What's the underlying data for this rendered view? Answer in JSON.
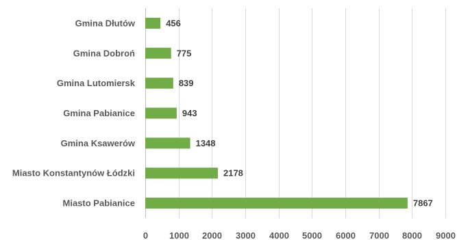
{
  "chart_data": {
    "type": "bar",
    "orientation": "horizontal",
    "categories": [
      "Gmina Dłutów",
      "Gmina Dobroń",
      "Gmina Lutomiersk",
      "Gmina Pabianice",
      "Gmina Ksawerów",
      "Miasto Konstantynów Łódzki",
      "Miasto Pabianice"
    ],
    "values": [
      456,
      775,
      839,
      943,
      1348,
      2178,
      7867
    ],
    "data_labels": [
      "456",
      "775",
      "839",
      "943",
      "1348",
      "2178",
      "7867"
    ],
    "xlim": [
      0,
      9000
    ],
    "x_ticks": [
      0,
      1000,
      2000,
      3000,
      4000,
      5000,
      6000,
      7000,
      8000,
      9000
    ],
    "x_tick_labels": [
      "0",
      "1000",
      "2000",
      "3000",
      "4000",
      "5000",
      "6000",
      "7000",
      "8000",
      "9000"
    ],
    "title": "",
    "xlabel": "",
    "ylabel": "",
    "grid": true,
    "legend": "none",
    "bar_color": "#70ad47",
    "grid_color": "#d9d9d9",
    "text_color": "#595959"
  }
}
